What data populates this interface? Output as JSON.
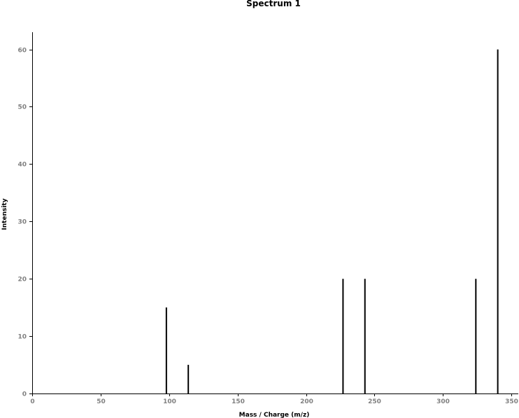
{
  "chart_data": {
    "type": "bar",
    "title": "Spectrum 1",
    "xlabel": "Mass / Charge (m/z)",
    "ylabel": "Intensity",
    "xlim": [
      0,
      355
    ],
    "ylim": [
      0,
      63
    ],
    "x_ticks": [
      0,
      50,
      100,
      150,
      200,
      250,
      300,
      350
    ],
    "y_ticks": [
      0,
      10,
      20,
      30,
      40,
      50,
      60
    ],
    "grid": false,
    "legend": "none",
    "peak_color": "#000000",
    "axis_color": "#000000",
    "tick_label_color": "#808080",
    "x": [
      98,
      114,
      227,
      243,
      324,
      340
    ],
    "values": [
      15,
      5,
      20,
      20,
      20,
      60
    ]
  }
}
